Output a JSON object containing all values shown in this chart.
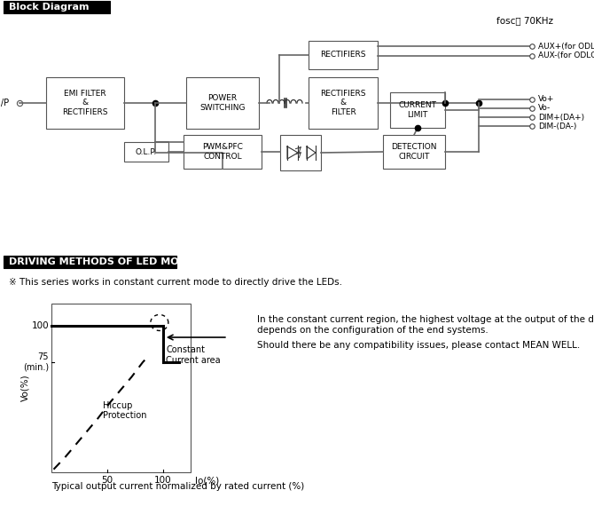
{
  "title_block": "Block Diagram",
  "title_driving": "DRIVING METHODS OF LED MODULE",
  "fosc_label": "fosc： 70KHz",
  "note_text": "※ This series works in constant current mode to directly drive the LEDs.",
  "right_text_line1": "In the constant current region, the highest voltage at the output of the driver",
  "right_text_line2": "depends on the configuration of the end systems.",
  "right_text_line3": "Should there be any compatibility issues, please contact MEAN WELL.",
  "caption": "Typical output current normalized by rated current (%)",
  "annotation_cc": "Constant\nCurrent area",
  "annotation_hiccup": "Hiccup\nProtection",
  "bg_color": "#ffffff"
}
